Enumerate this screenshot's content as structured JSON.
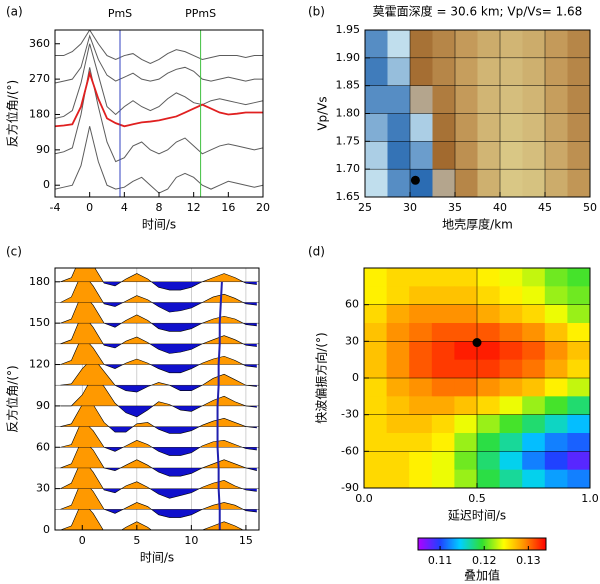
{
  "chart_data": [
    {
      "type": "line",
      "panel_label": "(a)",
      "xlabel": "时间/s",
      "ylabel": "反方位角/(°)",
      "xlim": [
        -4,
        20
      ],
      "ylim": [
        -30,
        395
      ],
      "xticks": [
        -4,
        0,
        4,
        8,
        12,
        16,
        20
      ],
      "yticks": [
        0,
        90,
        180,
        270,
        360
      ],
      "x": [
        -4,
        -3,
        -2,
        -1,
        0,
        1,
        2,
        3,
        4,
        5,
        6,
        7,
        8,
        9,
        10,
        11,
        12,
        13,
        14,
        15,
        16,
        17,
        18,
        19,
        20
      ],
      "series": [
        {
          "color": "#333333",
          "values": [
            -10,
            -5,
            0,
            50,
            150,
            60,
            0,
            -10,
            -5,
            10,
            20,
            0,
            -20,
            -10,
            20,
            30,
            20,
            0,
            -10,
            0,
            10,
            5,
            0,
            -5,
            0
          ]
        },
        {
          "color": "#333333",
          "values": [
            80,
            85,
            95,
            180,
            300,
            200,
            110,
            60,
            70,
            100,
            110,
            90,
            80,
            90,
            110,
            120,
            100,
            80,
            90,
            100,
            105,
            100,
            95,
            90,
            95
          ]
        },
        {
          "color": "#333333",
          "values": [
            170,
            175,
            190,
            260,
            360,
            280,
            200,
            180,
            200,
            215,
            200,
            190,
            200,
            220,
            235,
            225,
            210,
            205,
            215,
            220,
            215,
            210,
            205,
            210,
            215
          ]
        },
        {
          "color": "#333333",
          "values": [
            260,
            265,
            270,
            300,
            380,
            320,
            280,
            265,
            275,
            285,
            270,
            265,
            270,
            285,
            295,
            300,
            290,
            270,
            265,
            270,
            275,
            270,
            265,
            270,
            270
          ]
        },
        {
          "color": "#333333",
          "values": [
            330,
            330,
            340,
            360,
            395,
            360,
            330,
            320,
            330,
            335,
            320,
            310,
            320,
            335,
            345,
            340,
            330,
            320,
            325,
            330,
            330,
            330,
            325,
            330,
            330
          ]
        },
        {
          "color": "#e02020",
          "values": [
            150,
            152,
            155,
            200,
            285,
            220,
            170,
            158,
            150,
            155,
            160,
            162,
            165,
            170,
            175,
            185,
            195,
            205,
            195,
            185,
            180,
            182,
            185,
            185,
            185
          ]
        }
      ],
      "phase_lines": [
        {
          "label": "PmS",
          "x": 3.5,
          "color": "#3040c0"
        },
        {
          "label": "PPmS",
          "x": 12.8,
          "color": "#40c040"
        }
      ]
    },
    {
      "type": "heatmap",
      "panel_label": "(b)",
      "title": "莫霍面深度 = 30.6 km; Vp/Vs= 1.68",
      "xlabel": "地壳厚度/km",
      "ylabel": "Vp/Vs",
      "xlim": [
        25,
        50
      ],
      "ylim": [
        1.65,
        1.95
      ],
      "xticks": [
        25,
        30,
        35,
        40,
        45,
        50
      ],
      "yticks": [
        1.65,
        {
          "value": 1.7,
          "label": "1.70"
        },
        1.75,
        {
          "value": 1.8,
          "label": "1.80"
        },
        1.85,
        {
          "value": 1.9,
          "label": "1.90"
        },
        1.95
      ],
      "grid": true,
      "clim": [
        0,
        1
      ],
      "colormap": [
        [
          0,
          "#2b6cb3"
        ],
        [
          0.38,
          "#cde8f2"
        ],
        [
          0.42,
          "#9c6228"
        ],
        [
          0.7,
          "#c49a5a"
        ],
        [
          1,
          "#ddd08e"
        ]
      ],
      "x_edges": [
        25,
        27.5,
        30,
        32.5,
        35,
        37.5,
        40,
        42.5,
        45,
        47.5,
        50
      ],
      "y_edges": [
        1.95,
        1.9,
        1.85,
        1.8,
        1.75,
        1.7,
        1.65
      ],
      "z": [
        [
          0.1,
          0.35,
          0.5,
          0.6,
          0.7,
          0.8,
          0.85,
          0.8,
          0.7,
          0.6
        ],
        [
          0.05,
          0.25,
          0.48,
          0.6,
          0.72,
          0.85,
          0.88,
          0.82,
          0.7,
          0.6
        ],
        [
          0.1,
          0.1,
          0.4,
          0.55,
          0.7,
          0.85,
          0.9,
          0.85,
          0.72,
          0.6
        ],
        [
          0.2,
          0.05,
          0.3,
          0.5,
          0.68,
          0.85,
          0.92,
          0.88,
          0.75,
          0.62
        ],
        [
          0.3,
          0.02,
          0.15,
          0.46,
          0.65,
          0.85,
          0.95,
          0.9,
          0.78,
          0.65
        ],
        [
          0.35,
          0.1,
          0.0,
          0.4,
          0.6,
          0.82,
          0.95,
          0.92,
          0.8,
          0.68
        ]
      ],
      "point": {
        "x": 30.6,
        "y": 1.68
      }
    },
    {
      "type": "wiggle",
      "panel_label": "(c)",
      "xlabel": "时间/s",
      "ylabel": "反方位角/(°)",
      "xlim": [
        -2.5,
        16.2
      ],
      "ylim": [
        0,
        190
      ],
      "xticks": [
        0,
        5,
        10,
        15
      ],
      "yticks": [
        0,
        30,
        60,
        90,
        120,
        150,
        180
      ],
      "grid": true,
      "fill_positive": "#ff9900",
      "fill_negative": "#1010cc",
      "arrival_color": "#2020b0",
      "times": [
        -2,
        -1,
        0,
        1,
        2,
        3,
        4,
        5,
        6,
        7,
        8,
        9,
        10,
        11,
        12,
        13,
        14,
        15,
        16
      ],
      "traces": [
        {
          "baz": 0,
          "values": [
            0,
            3,
            21,
            12,
            -1,
            -3,
            2,
            6,
            2,
            -4,
            -7,
            -6,
            -4,
            0,
            3,
            6,
            3,
            -1,
            -2
          ]
        },
        {
          "baz": 15,
          "values": [
            0,
            3,
            22,
            13,
            0,
            -3,
            1,
            5,
            2,
            -4,
            -6,
            -6,
            -4,
            0,
            3,
            5,
            3,
            -1,
            -2
          ]
        },
        {
          "baz": 30,
          "values": [
            0,
            4,
            22,
            12,
            -1,
            -3,
            2,
            5,
            1,
            -4,
            -7,
            -5,
            -3,
            1,
            4,
            6,
            2,
            -1,
            -2
          ]
        },
        {
          "baz": 45,
          "values": [
            0,
            3,
            21,
            13,
            0,
            -2,
            2,
            6,
            2,
            -3,
            -6,
            -6,
            -4,
            0,
            3,
            6,
            3,
            0,
            -2
          ]
        },
        {
          "baz": 60,
          "values": [
            0,
            2,
            20,
            12,
            0,
            -3,
            1,
            5,
            2,
            -3,
            -6,
            -6,
            -4,
            1,
            4,
            5,
            2,
            -1,
            -2
          ]
        },
        {
          "baz": 75,
          "values": [
            0,
            2,
            16,
            16,
            3,
            -4,
            -4,
            2,
            3,
            -2,
            -5,
            -5,
            -3,
            1,
            4,
            6,
            3,
            0,
            -1
          ]
        },
        {
          "baz": 90,
          "values": [
            0,
            0,
            8,
            22,
            14,
            2,
            -5,
            -8,
            -3,
            3,
            1,
            -3,
            -4,
            0,
            4,
            7,
            3,
            0,
            -1
          ]
        },
        {
          "baz": 105,
          "values": [
            0,
            1,
            12,
            20,
            10,
            0,
            -4,
            -5,
            -1,
            2,
            0,
            -4,
            -4,
            0,
            5,
            8,
            4,
            0,
            -1
          ]
        },
        {
          "baz": 120,
          "values": [
            0,
            3,
            21,
            12,
            0,
            -3,
            1,
            4,
            1,
            -3,
            -6,
            -6,
            -3,
            1,
            4,
            6,
            3,
            -1,
            -2
          ]
        },
        {
          "baz": 135,
          "values": [
            0,
            3,
            22,
            12,
            -1,
            -3,
            2,
            5,
            1,
            -4,
            -7,
            -6,
            -4,
            0,
            3,
            6,
            3,
            -1,
            -2
          ]
        },
        {
          "baz": 150,
          "values": [
            0,
            3,
            22,
            13,
            0,
            -3,
            2,
            6,
            2,
            -4,
            -6,
            -6,
            -4,
            0,
            3,
            5,
            3,
            -1,
            -2
          ]
        },
        {
          "baz": 165,
          "values": [
            0,
            4,
            22,
            12,
            -1,
            -3,
            1,
            5,
            2,
            -3,
            -7,
            -6,
            -4,
            0,
            4,
            6,
            3,
            -1,
            -2
          ]
        },
        {
          "baz": 180,
          "values": [
            0,
            3,
            21,
            12,
            -1,
            -3,
            2,
            6,
            2,
            -4,
            -6,
            -6,
            -4,
            0,
            3,
            6,
            3,
            -1,
            -2
          ]
        }
      ],
      "arrival_times": [
        12.6,
        12.6,
        12.5,
        12.5,
        12.4,
        12.4,
        12.4,
        12.5,
        12.5,
        12.6,
        12.6,
        12.7,
        12.8
      ]
    },
    {
      "type": "heatmap",
      "panel_label": "(d)",
      "xlabel": "延迟时间/s",
      "ylabel": "快波偏振方向/(°)",
      "xlim": [
        0,
        1
      ],
      "ylim": [
        -90,
        90
      ],
      "xticks": [
        {
          "value": 0,
          "label": "0.0"
        },
        0.5,
        {
          "value": 1,
          "label": "1.0"
        }
      ],
      "yticks": [
        -90,
        -60,
        -30,
        0,
        30,
        60
      ],
      "grid": true,
      "clim": [
        0.105,
        0.134
      ],
      "colormap": [
        [
          0,
          "#b000ff"
        ],
        [
          0.17,
          "#2040ff"
        ],
        [
          0.33,
          "#00d0ff"
        ],
        [
          0.5,
          "#30e030"
        ],
        [
          0.67,
          "#ffff00"
        ],
        [
          0.83,
          "#ff9000"
        ],
        [
          1,
          "#ff0000"
        ]
      ],
      "x_edges": [
        0,
        0.1,
        0.2,
        0.3,
        0.4,
        0.5,
        0.6,
        0.7,
        0.8,
        0.9,
        1
      ],
      "y_edges": [
        90,
        75,
        60,
        45,
        30,
        15,
        0,
        -15,
        -30,
        -45,
        -60,
        -75,
        -90
      ],
      "z": [
        [
          0.125,
          0.126,
          0.126,
          0.126,
          0.126,
          0.125,
          0.124,
          0.123,
          0.121,
          0.12
        ],
        [
          0.125,
          0.126,
          0.127,
          0.127,
          0.127,
          0.126,
          0.125,
          0.124,
          0.122,
          0.121
        ],
        [
          0.126,
          0.128,
          0.129,
          0.129,
          0.129,
          0.128,
          0.127,
          0.126,
          0.124,
          0.122
        ],
        [
          0.127,
          0.129,
          0.13,
          0.131,
          0.131,
          0.131,
          0.13,
          0.129,
          0.127,
          0.125
        ],
        [
          0.127,
          0.129,
          0.131,
          0.132,
          0.133,
          0.133,
          0.132,
          0.131,
          0.129,
          0.127
        ],
        [
          0.127,
          0.129,
          0.131,
          0.132,
          0.132,
          0.132,
          0.131,
          0.13,
          0.128,
          0.126
        ],
        [
          0.126,
          0.128,
          0.129,
          0.13,
          0.13,
          0.129,
          0.128,
          0.127,
          0.125,
          0.123
        ],
        [
          0.126,
          0.127,
          0.128,
          0.128,
          0.127,
          0.126,
          0.124,
          0.122,
          0.12,
          0.118
        ],
        [
          0.126,
          0.127,
          0.127,
          0.126,
          0.124,
          0.122,
          0.12,
          0.118,
          0.116,
          0.114
        ],
        [
          0.126,
          0.126,
          0.126,
          0.125,
          0.122,
          0.119,
          0.117,
          0.114,
          0.112,
          0.111
        ],
        [
          0.126,
          0.126,
          0.125,
          0.124,
          0.121,
          0.118,
          0.115,
          0.112,
          0.11,
          0.108
        ],
        [
          0.126,
          0.126,
          0.125,
          0.124,
          0.122,
          0.119,
          0.117,
          0.115,
          0.113,
          0.112
        ]
      ],
      "point": {
        "x": 0.5,
        "y": 29
      },
      "colorbar": {
        "label": "叠加值",
        "ticks": [
          0.11,
          0.12,
          0.13
        ]
      }
    }
  ]
}
